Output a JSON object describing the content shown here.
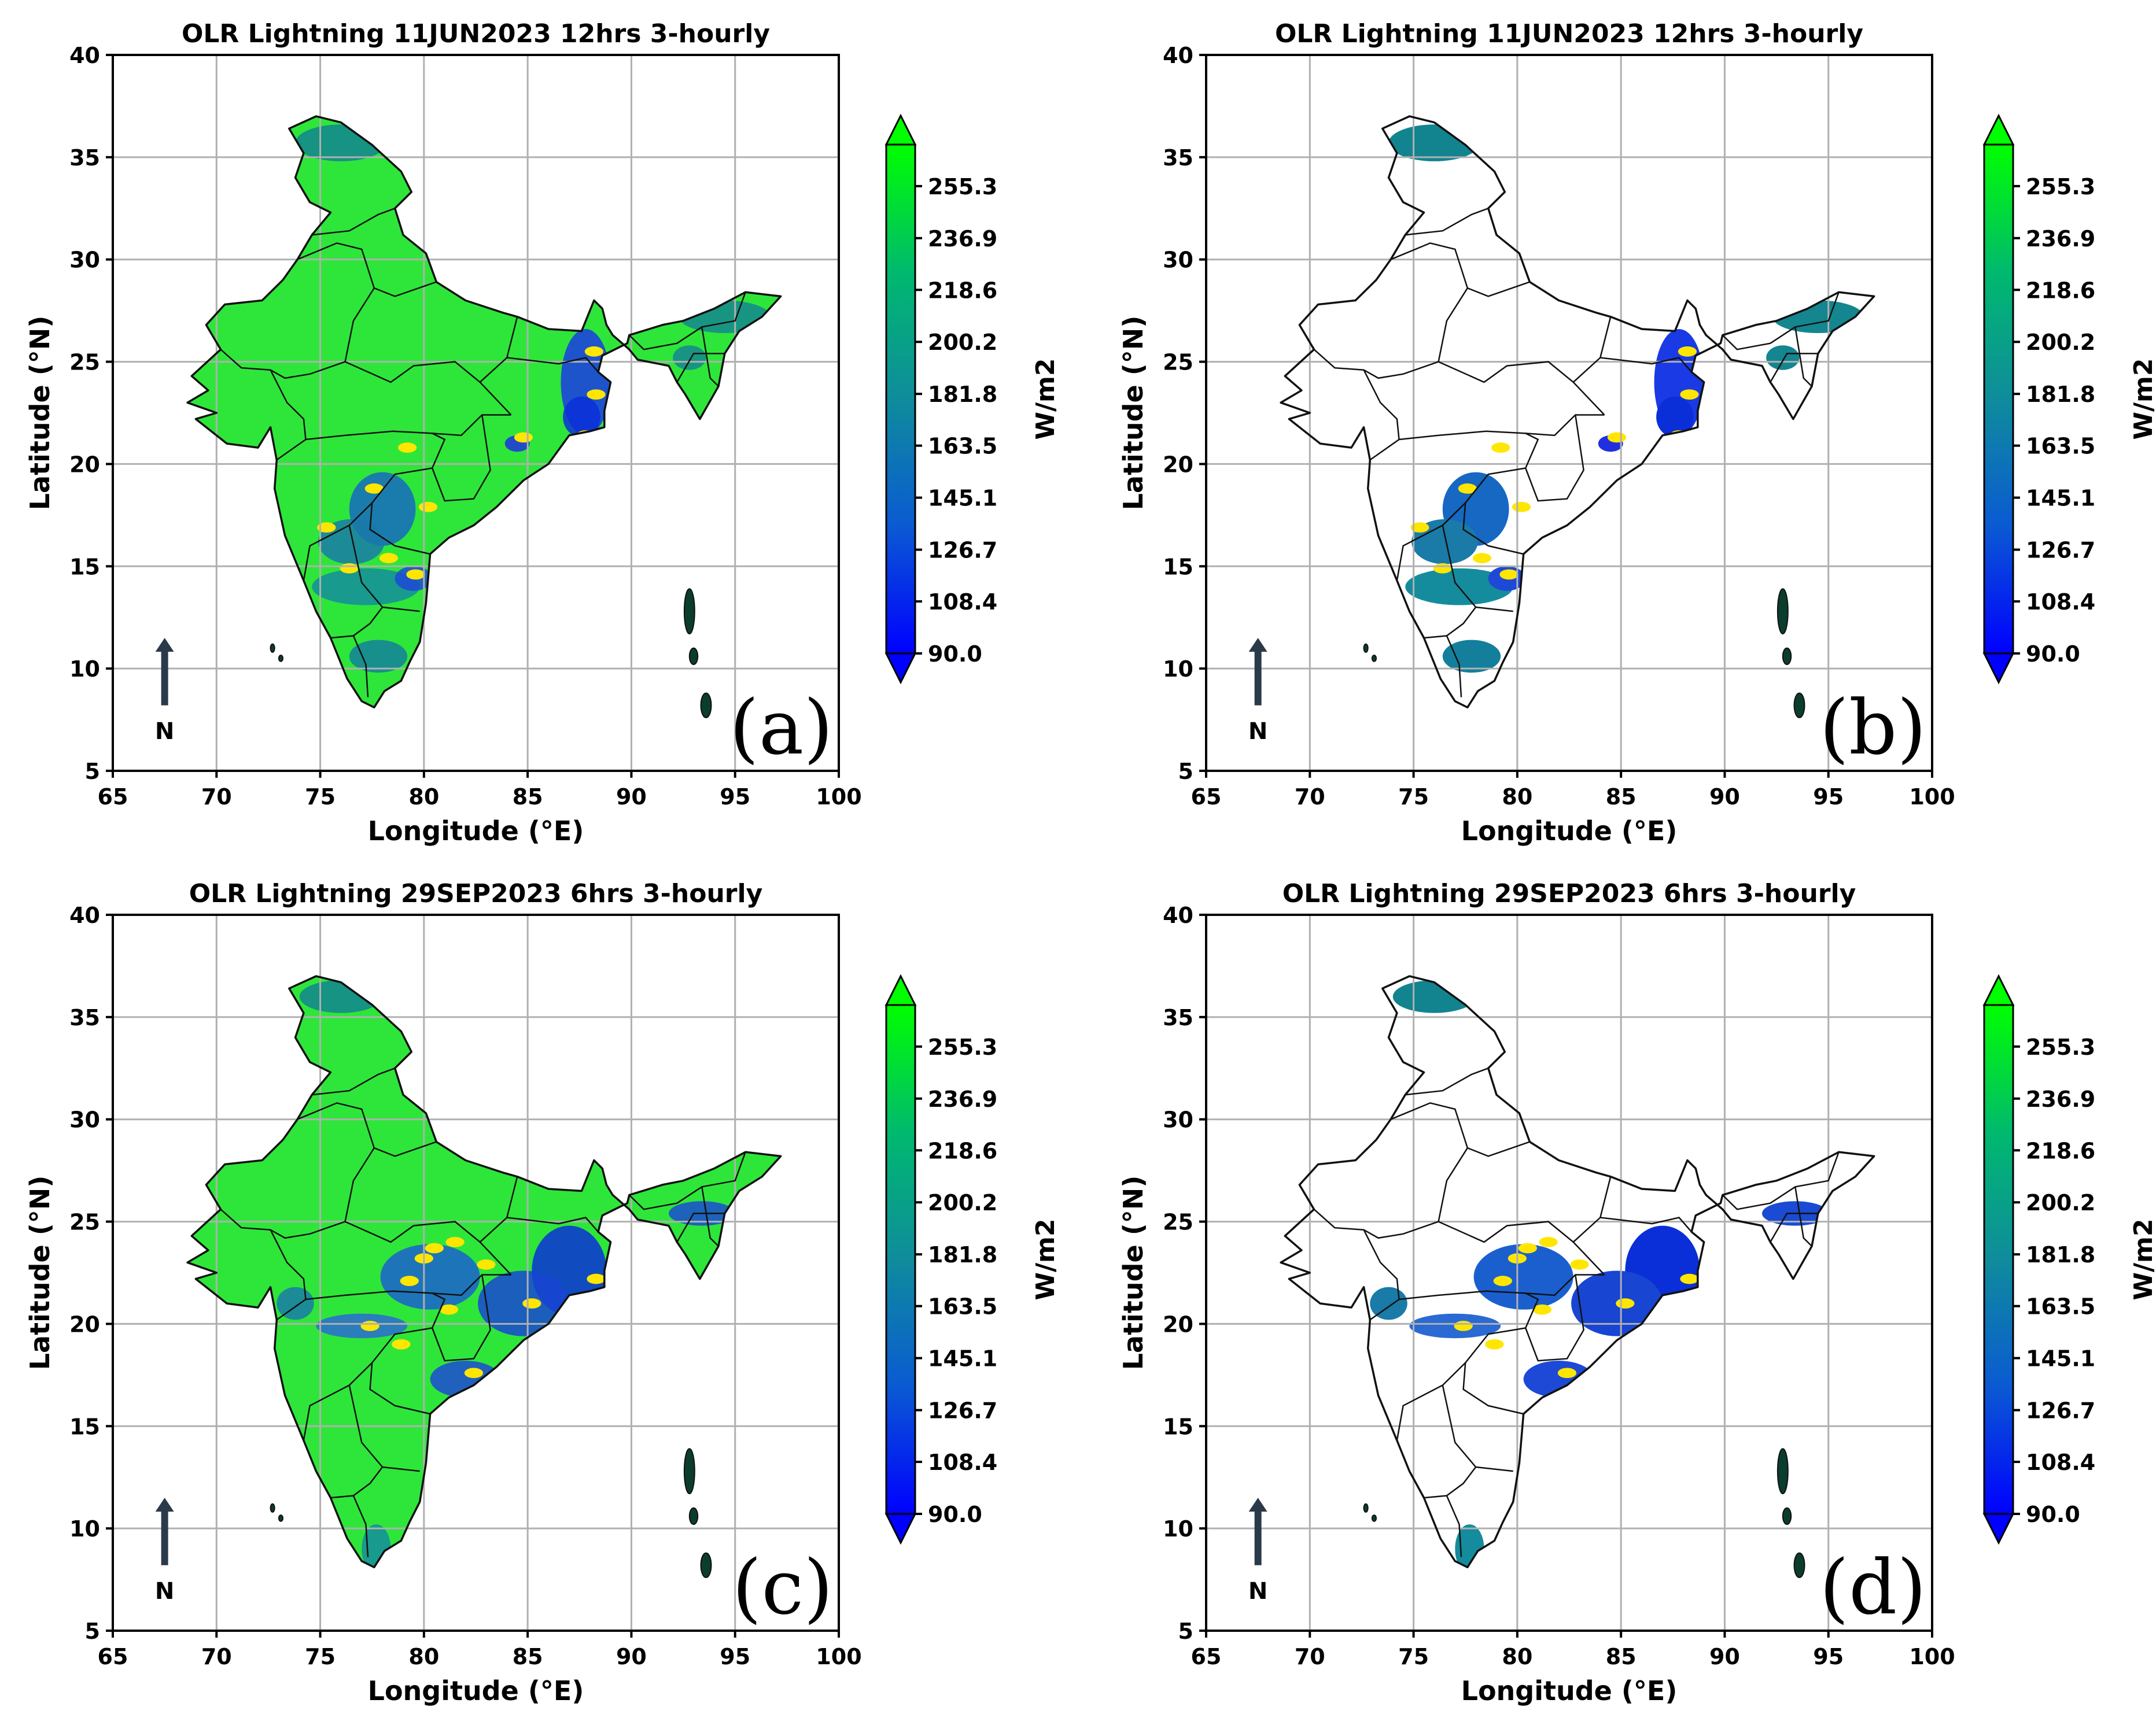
{
  "figure": {
    "panels": [
      {
        "id": "a",
        "label": "(a)",
        "title": "OLR Lightning 11JUN2023 12hrs 3-hourly",
        "mode": "full",
        "event": "jun"
      },
      {
        "id": "b",
        "label": "(b)",
        "title": "OLR Lightning 11JUN2023 12hrs 3-hourly",
        "mode": "masked",
        "event": "jun"
      },
      {
        "id": "c",
        "label": "(c)",
        "title": "OLR Lightning 29SEP2023 6hrs 3-hourly",
        "mode": "full",
        "event": "sep"
      },
      {
        "id": "d",
        "label": "(d)",
        "title": "OLR Lightning 29SEP2023 6hrs 3-hourly",
        "mode": "masked",
        "event": "sep"
      }
    ],
    "xlabel": "Longitude (°E)",
    "ylabel": "Latitude (°N)",
    "xlim": [
      65,
      100
    ],
    "ylim": [
      5,
      40
    ],
    "xticks": [
      "65",
      "70",
      "75",
      "80",
      "85",
      "90",
      "95",
      "100"
    ],
    "yticks": [
      "5",
      "10",
      "15",
      "20",
      "25",
      "30",
      "35",
      "40"
    ],
    "north_label": "N",
    "colorbar": {
      "unit": "W/m2",
      "range": [
        90.0,
        270.0
      ],
      "ticks": [
        "90.0",
        "108.4",
        "126.7",
        "145.1",
        "163.5",
        "181.8",
        "200.2",
        "218.6",
        "236.9",
        "255.3"
      ],
      "extend": "both",
      "colors": [
        "#0000ff",
        "#0a5ad2",
        "#0f8c9c",
        "#00b96e",
        "#00ff00"
      ]
    },
    "highlight_color": "#ffe600",
    "land_color": "#2ee63a"
  },
  "chart_data": [
    {
      "type": "heatmap",
      "title": "OLR Lightning 11JUN2023 12hrs 3-hourly",
      "xlabel": "Longitude (°E)",
      "ylabel": "Latitude (°N)",
      "xlim": [
        65,
        100
      ],
      "ylim": [
        5,
        40
      ],
      "colorbar_label": "W/m2",
      "color_range": [
        90.0,
        270.0
      ],
      "grid": true,
      "note": "full OLR field over India; low OLR (blue) near 87-88°E,22-25°N"
    },
    {
      "type": "heatmap",
      "title": "OLR Lightning 11JUN2023 12hrs 3-hourly",
      "xlabel": "Longitude (°E)",
      "ylabel": "Latitude (°N)",
      "xlim": [
        65,
        100
      ],
      "ylim": [
        5,
        40
      ],
      "colorbar_label": "W/m2",
      "color_range": [
        90.0,
        270.0
      ],
      "grid": true,
      "note": "only low-OLR regions shown"
    },
    {
      "type": "heatmap",
      "title": "OLR Lightning 29SEP2023 6hrs 3-hourly",
      "xlabel": "Longitude (°E)",
      "ylabel": "Latitude (°N)",
      "xlim": [
        65,
        100
      ],
      "ylim": [
        5,
        40
      ],
      "colorbar_label": "W/m2",
      "color_range": [
        90.0,
        270.0
      ],
      "grid": true,
      "note": "full OLR field; low OLR over east coast 82-88°E"
    },
    {
      "type": "heatmap",
      "title": "OLR Lightning 29SEP2023 6hrs 3-hourly",
      "xlabel": "Longitude (°E)",
      "ylabel": "Latitude (°N)",
      "xlim": [
        65,
        100
      ],
      "ylim": [
        5,
        40
      ],
      "colorbar_label": "W/m2",
      "color_range": [
        90.0,
        270.0
      ],
      "grid": true,
      "note": "only low-OLR regions shown"
    }
  ]
}
